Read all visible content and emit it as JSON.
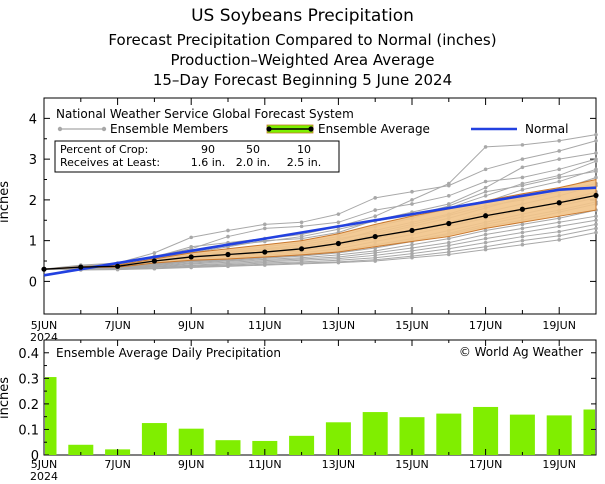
{
  "titles": {
    "line1": "US Soybeans Precipitation",
    "line2": "Forecast Precipitation Compared to Normal (inches)",
    "line3": "Production–Weighted Area Average",
    "line4": "15–Day Forecast Beginning 5 June 2024"
  },
  "chart_data": [
    {
      "type": "line",
      "title": "National Weather Service Global Forecast System",
      "ylabel": "inches",
      "ylim": [
        -0.8,
        4.5
      ],
      "yticks": [
        "0",
        "1",
        "2",
        "3",
        "4"
      ],
      "x_dates": [
        "5JUN",
        "6JUN",
        "7JUN",
        "8JUN",
        "9JUN",
        "10JUN",
        "11JUN",
        "12JUN",
        "13JUN",
        "14JUN",
        "15JUN",
        "16JUN",
        "17JUN",
        "18JUN",
        "19JUN",
        "20JUN"
      ],
      "xtick_labels": [
        "5JUN",
        "7JUN",
        "9JUN",
        "11JUN",
        "13JUN",
        "15JUN",
        "17JUN",
        "19JUN"
      ],
      "xtick_first_year": "2024",
      "legend": {
        "members": "Ensemble Members",
        "average": "Ensemble Average",
        "normal": "Normal"
      },
      "percentile_box": {
        "row1_label": "Percent of Crop:",
        "row1_values": [
          "90",
          "50",
          "10"
        ],
        "row2_label": "Receives at Least:",
        "row2_values": [
          "1.6 in.",
          "2.0 in.",
          "2.5 in."
        ]
      },
      "series": [
        {
          "name": "Ensemble Average",
          "values": [
            0.3,
            0.35,
            0.37,
            0.5,
            0.6,
            0.66,
            0.72,
            0.8,
            0.93,
            1.1,
            1.25,
            1.42,
            1.61,
            1.77,
            1.93,
            2.11
          ]
        },
        {
          "name": "Normal",
          "values": [
            0.15,
            0.3,
            0.45,
            0.6,
            0.75,
            0.9,
            1.05,
            1.2,
            1.35,
            1.5,
            1.65,
            1.8,
            1.95,
            2.1,
            2.25,
            2.3
          ]
        },
        {
          "name": "Band Upper",
          "values": [
            0.3,
            0.36,
            0.4,
            0.55,
            0.7,
            0.8,
            0.9,
            1.0,
            1.17,
            1.4,
            1.6,
            1.78,
            1.98,
            2.15,
            2.3,
            2.5
          ]
        },
        {
          "name": "Band Lower",
          "values": [
            0.3,
            0.34,
            0.35,
            0.45,
            0.52,
            0.55,
            0.6,
            0.65,
            0.72,
            0.85,
            0.98,
            1.1,
            1.3,
            1.45,
            1.6,
            1.75
          ]
        }
      ],
      "ensemble_members": [
        [
          0.3,
          0.4,
          0.45,
          0.7,
          1.08,
          1.25,
          1.4,
          1.45,
          1.65,
          2.05,
          2.2,
          2.35,
          2.75,
          3.0,
          3.2,
          3.45
        ],
        [
          0.3,
          0.38,
          0.42,
          0.6,
          0.85,
          0.95,
          1.05,
          1.15,
          1.35,
          1.6,
          2.0,
          2.4,
          3.3,
          3.35,
          3.45,
          3.6
        ],
        [
          0.3,
          0.36,
          0.4,
          0.55,
          0.7,
          0.85,
          1.0,
          1.05,
          1.2,
          1.5,
          1.7,
          1.9,
          2.3,
          2.8,
          3.0,
          3.15
        ],
        [
          0.3,
          0.35,
          0.38,
          0.52,
          0.65,
          0.75,
          0.85,
          0.95,
          1.1,
          1.35,
          1.55,
          1.8,
          2.1,
          2.4,
          2.6,
          2.95
        ],
        [
          0.3,
          0.33,
          0.36,
          0.5,
          0.6,
          0.7,
          0.78,
          0.85,
          1.0,
          1.25,
          1.45,
          1.65,
          1.95,
          2.25,
          2.45,
          2.75
        ],
        [
          0.3,
          0.34,
          0.37,
          0.48,
          0.58,
          0.65,
          0.72,
          0.8,
          0.95,
          1.15,
          1.35,
          1.55,
          1.8,
          2.05,
          2.25,
          2.55
        ],
        [
          0.3,
          0.32,
          0.34,
          0.45,
          0.55,
          0.62,
          0.68,
          0.75,
          0.88,
          1.05,
          1.25,
          1.45,
          1.7,
          1.9,
          2.1,
          2.35
        ],
        [
          0.3,
          0.33,
          0.35,
          0.44,
          0.52,
          0.58,
          0.64,
          0.7,
          0.8,
          0.98,
          1.15,
          1.35,
          1.55,
          1.75,
          1.95,
          2.2
        ],
        [
          0.3,
          0.31,
          0.33,
          0.42,
          0.5,
          0.55,
          0.6,
          0.66,
          0.75,
          0.9,
          1.05,
          1.25,
          1.45,
          1.65,
          1.85,
          2.05
        ],
        [
          0.3,
          0.32,
          0.34,
          0.4,
          0.48,
          0.52,
          0.57,
          0.62,
          0.7,
          0.82,
          0.98,
          1.15,
          1.35,
          1.5,
          1.7,
          1.9
        ],
        [
          0.3,
          0.3,
          0.32,
          0.38,
          0.45,
          0.5,
          0.54,
          0.58,
          0.65,
          0.75,
          0.9,
          1.05,
          1.25,
          1.4,
          1.55,
          1.75
        ],
        [
          0.3,
          0.31,
          0.33,
          0.36,
          0.43,
          0.47,
          0.51,
          0.55,
          0.6,
          0.7,
          0.82,
          0.95,
          1.15,
          1.3,
          1.45,
          1.6
        ],
        [
          0.3,
          0.3,
          0.31,
          0.35,
          0.4,
          0.44,
          0.48,
          0.52,
          0.56,
          0.64,
          0.75,
          0.88,
          1.05,
          1.2,
          1.35,
          1.5
        ],
        [
          0.3,
          0.29,
          0.3,
          0.33,
          0.38,
          0.41,
          0.45,
          0.48,
          0.52,
          0.58,
          0.68,
          0.8,
          0.95,
          1.1,
          1.22,
          1.4
        ],
        [
          0.3,
          0.29,
          0.3,
          0.32,
          0.36,
          0.39,
          0.42,
          0.45,
          0.48,
          0.53,
          0.62,
          0.72,
          0.85,
          1.0,
          1.12,
          1.3
        ],
        [
          0.3,
          0.28,
          0.29,
          0.31,
          0.34,
          0.37,
          0.4,
          0.43,
          0.46,
          0.5,
          0.58,
          0.66,
          0.78,
          0.9,
          1.02,
          1.2
        ],
        [
          0.3,
          0.37,
          0.43,
          0.62,
          0.8,
          1.1,
          1.3,
          1.35,
          1.45,
          1.75,
          1.9,
          2.1,
          2.45,
          2.55,
          2.75,
          3.0
        ],
        [
          0.3,
          0.35,
          0.39,
          0.56,
          0.72,
          0.88,
          0.98,
          1.1,
          1.28,
          1.48,
          1.62,
          1.85,
          2.2,
          2.35,
          2.55,
          2.7
        ],
        [
          0.3,
          0.33,
          0.36,
          0.49,
          0.62,
          0.72,
          0.8,
          0.9,
          1.05,
          1.2,
          1.4,
          1.62,
          1.85,
          2.0,
          2.2,
          2.4
        ],
        [
          0.3,
          0.31,
          0.33,
          0.41,
          0.49,
          0.54,
          0.59,
          0.64,
          0.72,
          0.86,
          1.0,
          1.18,
          1.4,
          1.58,
          1.75,
          1.95
        ]
      ]
    },
    {
      "type": "bar",
      "title": "Ensemble Average Daily Precipitation",
      "credit": "© World Ag Weather",
      "ylabel": "inches",
      "ylim": [
        0,
        0.45
      ],
      "yticks": [
        "0",
        "0.1",
        "0.2",
        "0.3",
        "0.4"
      ],
      "categories": [
        "5JUN",
        "6JUN",
        "7JUN",
        "8JUN",
        "9JUN",
        "10JUN",
        "11JUN",
        "12JUN",
        "13JUN",
        "14JUN",
        "15JUN",
        "16JUN",
        "17JUN",
        "18JUN",
        "19JUN",
        "20JUN"
      ],
      "values": [
        0.305,
        0.04,
        0.022,
        0.125,
        0.103,
        0.058,
        0.055,
        0.075,
        0.128,
        0.168,
        0.148,
        0.162,
        0.188,
        0.158,
        0.155,
        0.178
      ],
      "xtick_labels": [
        "5JUN",
        "7JUN",
        "9JUN",
        "11JUN",
        "13JUN",
        "15JUN",
        "17JUN",
        "19JUN"
      ],
      "xtick_first_year": "2024"
    }
  ],
  "colors": {
    "member": "#a8a8a8",
    "average": "#000000",
    "normal": "#2241e0",
    "band_fill": "#f2c48a",
    "band_edge": "#c9782e",
    "legend_band": "#7cf000",
    "bar": "#80ee00"
  }
}
